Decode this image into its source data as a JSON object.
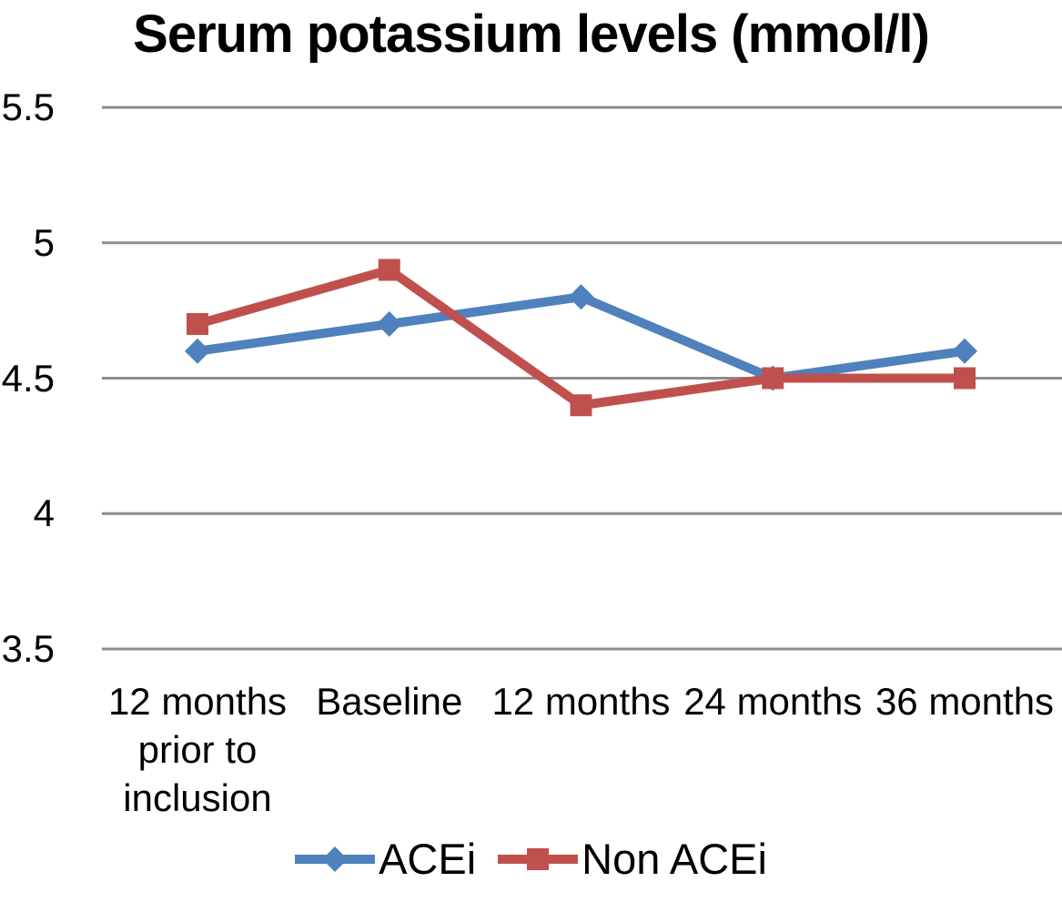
{
  "chart_data": {
    "type": "line",
    "title": "Serum potassium levels (mmol/l)",
    "categories": [
      "12 months\nprior to\ninclusion",
      "Baseline",
      "12 months",
      "24 months",
      "36 months"
    ],
    "series": [
      {
        "name": "ACEi",
        "color": "#4F81BD",
        "marker": "diamond",
        "values": [
          4.6,
          4.7,
          4.8,
          4.5,
          4.6
        ]
      },
      {
        "name": "Non ACEi",
        "color": "#C0504D",
        "marker": "square",
        "values": [
          4.7,
          4.9,
          4.4,
          4.5,
          4.5
        ]
      }
    ],
    "yticks": [
      {
        "label": "5.5",
        "value": 5.5
      },
      {
        "label": "5",
        "value": 5.0
      },
      {
        "label": "4.5",
        "value": 4.5
      },
      {
        "label": "4",
        "value": 4.0
      },
      {
        "label": "3.5",
        "value": 3.5
      }
    ],
    "ylim": [
      3.5,
      5.5
    ],
    "xlabel": "",
    "ylabel": "",
    "grid": true,
    "gridline_color": "#8C8C8C",
    "legend_position": "bottom",
    "background_color": "#FFFFFF",
    "text_color": "#000000"
  }
}
